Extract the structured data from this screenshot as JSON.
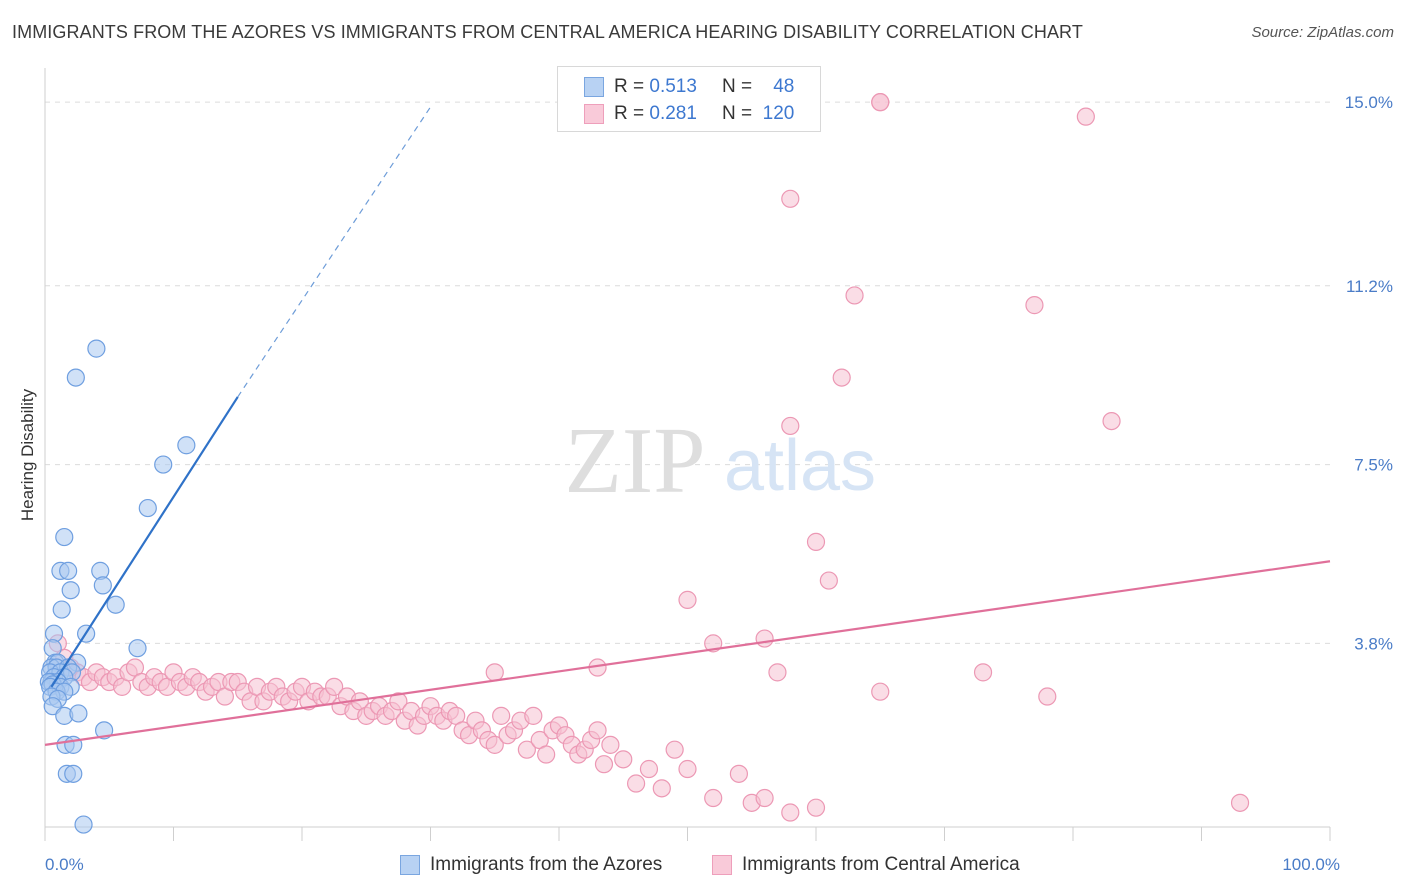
{
  "title": "IMMIGRANTS FROM THE AZORES VS IMMIGRANTS FROM CENTRAL AMERICA HEARING DISABILITY CORRELATION CHART",
  "source": "Source: ZipAtlas.com",
  "watermark": {
    "zip": "ZIP",
    "atlas": "atlas"
  },
  "legend": {
    "rows": [
      {
        "r_label": "R =",
        "r_value": "0.513",
        "n_label": "N =",
        "n_value": "48"
      },
      {
        "r_label": "R =",
        "r_value": "0.281",
        "n_label": "N =",
        "n_value": "120"
      }
    ]
  },
  "bottom_legend": {
    "azores": "Immigrants from the Azores",
    "central_america": "Immigrants from Central America"
  },
  "colors": {
    "azores_fill": "#a9c8f0",
    "azores_stroke": "#6f9fe0",
    "azores_line": "#2f72c8",
    "ca_fill": "#f6c1d1",
    "ca_stroke": "#ec98b4",
    "ca_line": "#e0709a",
    "tick_text": "#4a7cc7",
    "grid": "#dcdcdc"
  },
  "chart_data": {
    "type": "scatter",
    "title": "IMMIGRANTS FROM THE AZORES VS IMMIGRANTS FROM CENTRAL AMERICA HEARING DISABILITY CORRELATION CHART",
    "xlabel": "",
    "ylabel": "Hearing Disability",
    "xlim": [
      0,
      100
    ],
    "ylim": [
      0,
      15.5
    ],
    "x_tick_labels": [
      {
        "value": 0,
        "label": "0.0%"
      },
      {
        "value": 100,
        "label": "100.0%"
      }
    ],
    "y_ticks": [
      {
        "value": 3.8,
        "label": "3.8%"
      },
      {
        "value": 7.5,
        "label": "7.5%"
      },
      {
        "value": 11.2,
        "label": "11.2%"
      },
      {
        "value": 15.0,
        "label": "15.0%"
      }
    ],
    "grid": "horizontal dashed",
    "legend_position": "top-center",
    "series": [
      {
        "name": "Immigrants from the Azores",
        "R": 0.513,
        "N": 48,
        "trend": {
          "x0": 0.5,
          "y0": 2.9,
          "x1": 15,
          "y1": 8.9,
          "dashed_to_x": 30,
          "dashed_to_y": 14.9
        },
        "points": [
          [
            4.0,
            9.9
          ],
          [
            2.4,
            9.3
          ],
          [
            11.0,
            7.9
          ],
          [
            9.2,
            7.5
          ],
          [
            8.0,
            6.6
          ],
          [
            1.5,
            6.0
          ],
          [
            1.2,
            5.3
          ],
          [
            1.8,
            5.3
          ],
          [
            4.3,
            5.3
          ],
          [
            4.5,
            5.0
          ],
          [
            2.0,
            4.9
          ],
          [
            5.5,
            4.6
          ],
          [
            1.3,
            4.5
          ],
          [
            0.7,
            4.0
          ],
          [
            3.2,
            4.0
          ],
          [
            0.6,
            3.7
          ],
          [
            7.2,
            3.7
          ],
          [
            0.8,
            3.4
          ],
          [
            1.0,
            3.4
          ],
          [
            2.5,
            3.4
          ],
          [
            0.5,
            3.3
          ],
          [
            0.9,
            3.3
          ],
          [
            1.8,
            3.3
          ],
          [
            0.4,
            3.2
          ],
          [
            1.2,
            3.2
          ],
          [
            2.1,
            3.2
          ],
          [
            0.7,
            3.1
          ],
          [
            1.5,
            3.1
          ],
          [
            0.5,
            3.0
          ],
          [
            1.0,
            3.0
          ],
          [
            0.3,
            3.0
          ],
          [
            0.6,
            2.95
          ],
          [
            0.4,
            2.9
          ],
          [
            1.2,
            2.9
          ],
          [
            2.0,
            2.9
          ],
          [
            0.9,
            2.8
          ],
          [
            1.5,
            2.8
          ],
          [
            0.5,
            2.7
          ],
          [
            1.0,
            2.65
          ],
          [
            0.6,
            2.5
          ],
          [
            1.5,
            2.3
          ],
          [
            2.6,
            2.35
          ],
          [
            4.6,
            2.0
          ],
          [
            1.6,
            1.7
          ],
          [
            2.2,
            1.7
          ],
          [
            1.7,
            1.1
          ],
          [
            2.2,
            1.1
          ],
          [
            3.0,
            0.05
          ]
        ]
      },
      {
        "name": "Immigrants from Central America",
        "R": 0.281,
        "N": 120,
        "trend": {
          "x0": 0,
          "y0": 1.7,
          "x1": 100,
          "y1": 5.5
        },
        "points": [
          [
            65,
            15.0
          ],
          [
            65,
            15.0
          ],
          [
            81,
            14.7
          ],
          [
            58,
            13.0
          ],
          [
            63,
            11.0
          ],
          [
            77,
            10.8
          ],
          [
            62,
            9.3
          ],
          [
            58,
            8.3
          ],
          [
            83,
            8.4
          ],
          [
            60,
            5.9
          ],
          [
            61,
            5.1
          ],
          [
            50,
            4.7
          ],
          [
            52,
            3.8
          ],
          [
            56,
            3.9
          ],
          [
            73,
            3.2
          ],
          [
            57,
            3.2
          ],
          [
            43,
            3.3
          ],
          [
            65,
            2.8
          ],
          [
            1,
            3.8
          ],
          [
            1.5,
            3.5
          ],
          [
            2,
            3.3
          ],
          [
            2.5,
            3.2
          ],
          [
            3,
            3.1
          ],
          [
            3.5,
            3.0
          ],
          [
            4,
            3.2
          ],
          [
            4.5,
            3.1
          ],
          [
            5,
            3.0
          ],
          [
            5.5,
            3.1
          ],
          [
            6,
            2.9
          ],
          [
            6.5,
            3.2
          ],
          [
            7,
            3.3
          ],
          [
            7.5,
            3.0
          ],
          [
            8,
            2.9
          ],
          [
            8.5,
            3.1
          ],
          [
            9,
            3.0
          ],
          [
            9.5,
            2.9
          ],
          [
            10,
            3.2
          ],
          [
            10.5,
            3.0
          ],
          [
            11,
            2.9
          ],
          [
            11.5,
            3.1
          ],
          [
            12,
            3.0
          ],
          [
            12.5,
            2.8
          ],
          [
            13,
            2.9
          ],
          [
            13.5,
            3.0
          ],
          [
            14,
            2.7
          ],
          [
            14.5,
            3.0
          ],
          [
            15,
            3.0
          ],
          [
            15.5,
            2.8
          ],
          [
            16,
            2.6
          ],
          [
            16.5,
            2.9
          ],
          [
            17,
            2.6
          ],
          [
            17.5,
            2.8
          ],
          [
            18,
            2.9
          ],
          [
            18.5,
            2.7
          ],
          [
            19,
            2.6
          ],
          [
            19.5,
            2.8
          ],
          [
            20,
            2.9
          ],
          [
            20.5,
            2.6
          ],
          [
            21,
            2.8
          ],
          [
            21.5,
            2.7
          ],
          [
            22,
            2.7
          ],
          [
            22.5,
            2.9
          ],
          [
            23,
            2.5
          ],
          [
            23.5,
            2.7
          ],
          [
            24,
            2.4
          ],
          [
            24.5,
            2.6
          ],
          [
            25,
            2.3
          ],
          [
            25.5,
            2.4
          ],
          [
            26,
            2.5
          ],
          [
            26.5,
            2.3
          ],
          [
            27,
            2.4
          ],
          [
            27.5,
            2.6
          ],
          [
            28,
            2.2
          ],
          [
            28.5,
            2.4
          ],
          [
            29,
            2.1
          ],
          [
            29.5,
            2.3
          ],
          [
            30,
            2.5
          ],
          [
            30.5,
            2.3
          ],
          [
            31,
            2.2
          ],
          [
            31.5,
            2.4
          ],
          [
            32,
            2.3
          ],
          [
            32.5,
            2.0
          ],
          [
            33,
            1.9
          ],
          [
            33.5,
            2.2
          ],
          [
            34,
            2.0
          ],
          [
            34.5,
            1.8
          ],
          [
            35,
            1.7
          ],
          [
            35.5,
            2.3
          ],
          [
            36,
            1.9
          ],
          [
            36.5,
            2.0
          ],
          [
            37,
            2.2
          ],
          [
            37.5,
            1.6
          ],
          [
            38,
            2.3
          ],
          [
            38.5,
            1.8
          ],
          [
            39,
            1.5
          ],
          [
            39.5,
            2.0
          ],
          [
            40,
            2.1
          ],
          [
            40.5,
            1.9
          ],
          [
            41,
            1.7
          ],
          [
            41.5,
            1.5
          ],
          [
            42,
            1.6
          ],
          [
            42.5,
            1.8
          ],
          [
            43,
            2.0
          ],
          [
            43.5,
            1.3
          ],
          [
            44,
            1.7
          ],
          [
            45,
            1.4
          ],
          [
            46,
            0.9
          ],
          [
            47,
            1.2
          ],
          [
            48,
            0.8
          ],
          [
            49,
            1.6
          ],
          [
            50,
            1.2
          ],
          [
            52,
            0.6
          ],
          [
            54,
            1.1
          ],
          [
            55,
            0.5
          ],
          [
            56,
            0.6
          ],
          [
            58,
            0.3
          ],
          [
            60,
            0.4
          ],
          [
            78,
            2.7
          ],
          [
            93,
            0.5
          ],
          [
            35,
            3.2
          ]
        ]
      }
    ]
  }
}
